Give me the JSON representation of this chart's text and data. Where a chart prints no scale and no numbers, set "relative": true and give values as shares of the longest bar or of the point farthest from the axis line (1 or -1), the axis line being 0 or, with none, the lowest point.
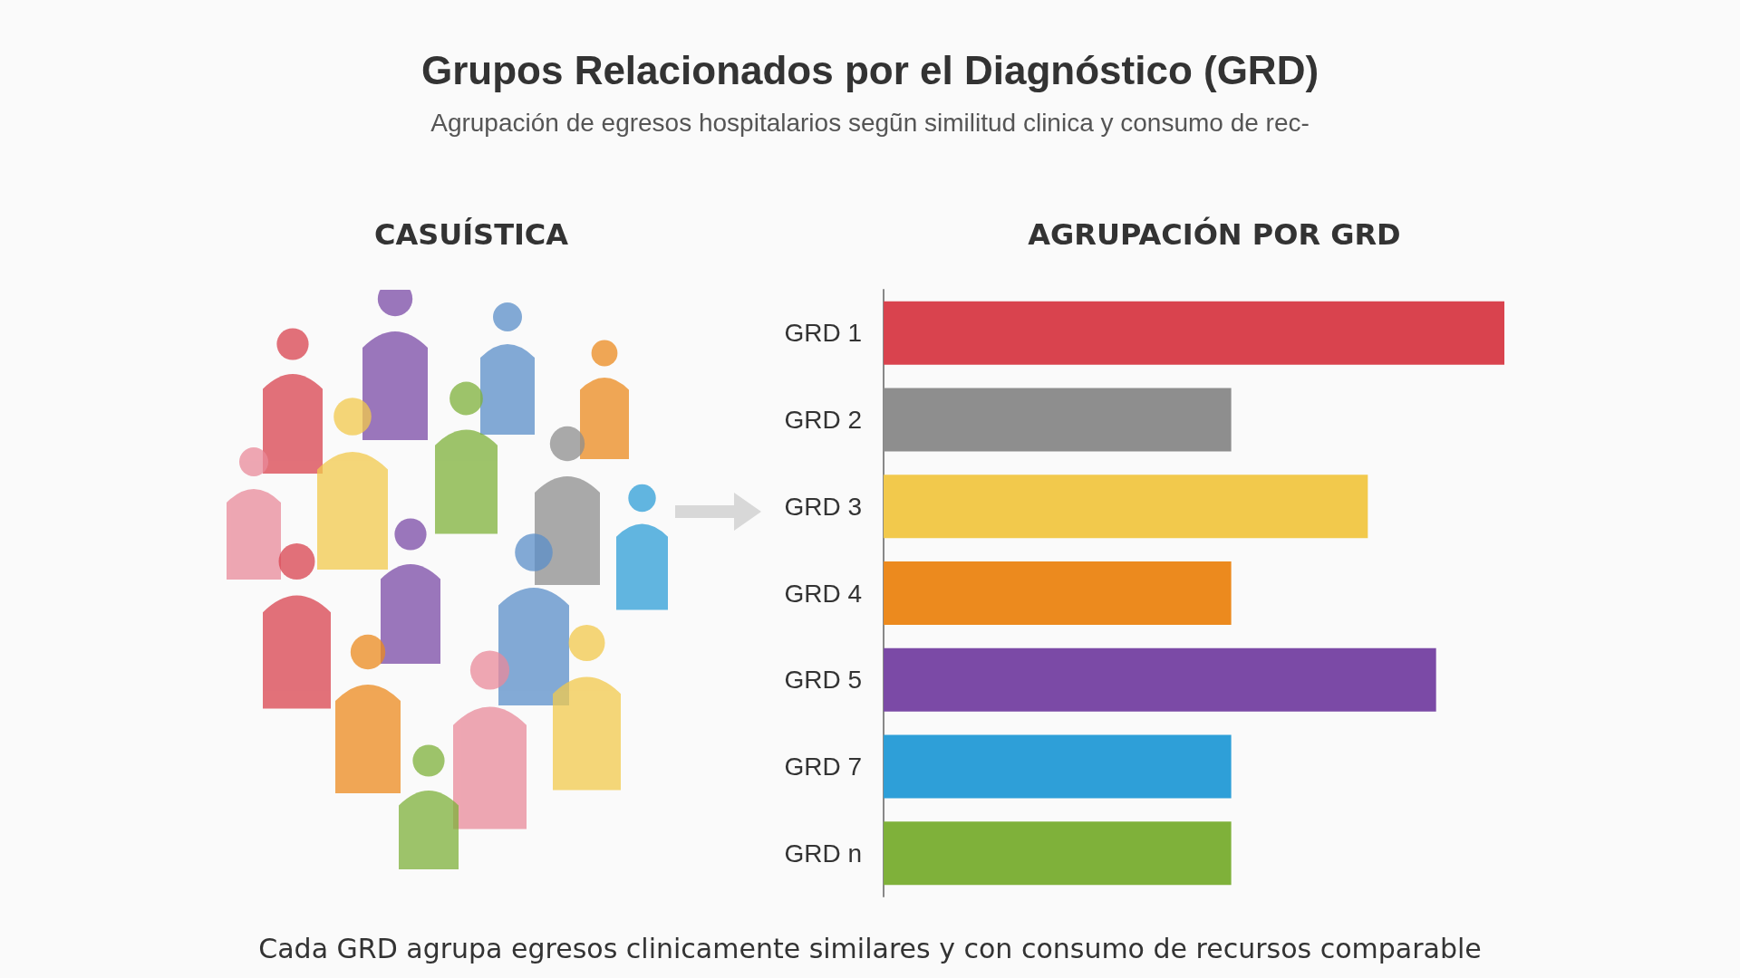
{
  "chart_data": {
    "type": "bar",
    "orientation": "horizontal",
    "relative": true,
    "title": "Grupos Relacionados por el Diagnóstico (GRD)",
    "subtitle": "Agrupación de egresos hospitalarios segũn similitud clinica y consumo de rec-",
    "categories": [
      "GRD 1",
      "GRD 2",
      "GRD 3",
      "GRD 4",
      "GRD 5",
      "GRD 7",
      "GRD n"
    ],
    "values": [
      1,
      0.56,
      0.78,
      0.56,
      0.89,
      0.56,
      0.56
    ],
    "colors": [
      "#d9434e",
      "#8e8e8e",
      "#f2c94c",
      "#ec8a1e",
      "#7b4aa6",
      "#2e9fd8",
      "#7fb13a"
    ],
    "annotations": [
      "CASUÍSTICA",
      "AGRUPACIÓN POR GRD",
      "Cada GRD agrupa egresos clinicamente similares y con consumo de recursos comparable"
    ],
    "data_labels": false
  }
}
